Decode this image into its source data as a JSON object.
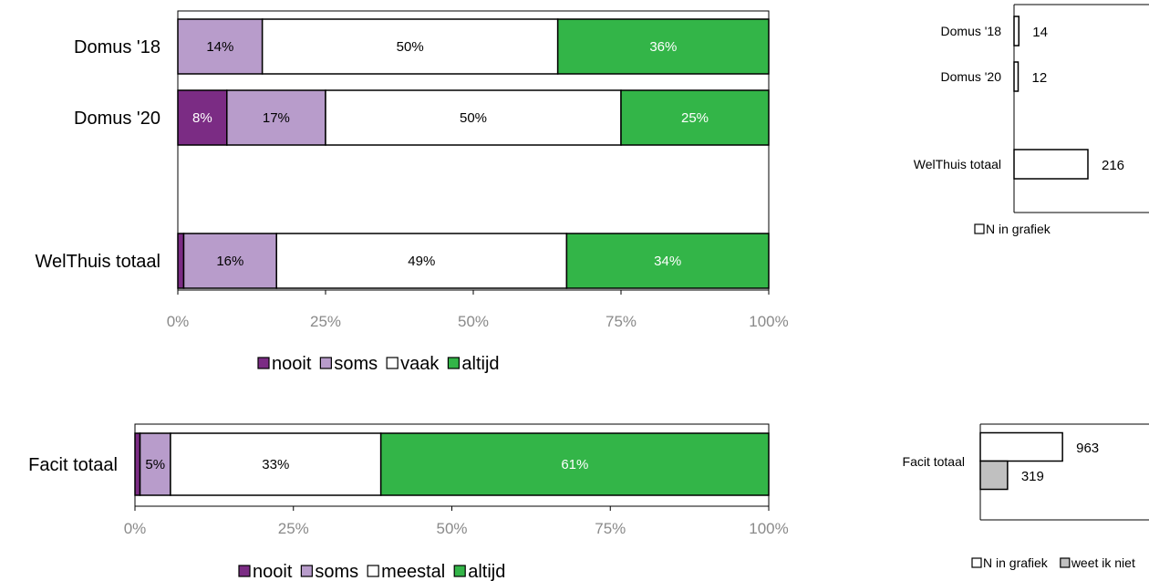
{
  "chart_data": [
    {
      "type": "bar",
      "stacked": true,
      "orientation": "horizontal",
      "categories": [
        "Domus '18",
        "Domus '20",
        "WelThuis totaal"
      ],
      "series": [
        {
          "name": "nooit",
          "color": "#7b2c84",
          "values": [
            0,
            8.3,
            1.0
          ],
          "labels": [
            "",
            "8%",
            ""
          ]
        },
        {
          "name": "soms",
          "color": "#b89ccb",
          "values": [
            14.3,
            16.7,
            15.7
          ],
          "labels": [
            "14%",
            "17%",
            "16%"
          ]
        },
        {
          "name": "vaak",
          "color": "#ffffff",
          "values": [
            50.0,
            50.0,
            49.1
          ],
          "labels": [
            "50%",
            "50%",
            "49%"
          ]
        },
        {
          "name": "altijd",
          "color": "#33b548",
          "values": [
            35.7,
            25.0,
            34.2
          ],
          "labels": [
            "36%",
            "25%",
            "34%"
          ]
        }
      ],
      "xlim": [
        0,
        100
      ],
      "xticks": [
        "0%",
        "25%",
        "50%",
        "75%",
        "100%"
      ],
      "legend_position": "bottom"
    },
    {
      "type": "bar",
      "stacked": true,
      "orientation": "horizontal",
      "categories": [
        "Facit totaal"
      ],
      "series": [
        {
          "name": "nooit",
          "color": "#7b2c84",
          "values": [
            0.8
          ],
          "labels": [
            ""
          ]
        },
        {
          "name": "soms",
          "color": "#b89ccb",
          "values": [
            4.8
          ],
          "labels": [
            "5%"
          ]
        },
        {
          "name": "meestal",
          "color": "#ffffff",
          "values": [
            33.2
          ],
          "labels": [
            "33%"
          ]
        },
        {
          "name": "altijd",
          "color": "#33b548",
          "values": [
            61.2
          ],
          "labels": [
            "61%"
          ]
        }
      ],
      "xlim": [
        0,
        100
      ],
      "xticks": [
        "0%",
        "25%",
        "50%",
        "75%",
        "100%"
      ],
      "legend_position": "bottom"
    },
    {
      "type": "bar",
      "orientation": "horizontal",
      "categories": [
        "Domus '18",
        "Domus '20",
        "WelThuis totaal"
      ],
      "series": [
        {
          "name": "N in grafiek",
          "color": "#ffffff",
          "values": [
            14,
            12,
            216
          ]
        }
      ],
      "legend_position": "bottom"
    },
    {
      "type": "bar",
      "orientation": "horizontal",
      "categories": [
        "Facit totaal"
      ],
      "series": [
        {
          "name": "N in grafiek",
          "color": "#ffffff",
          "values": [
            963
          ]
        },
        {
          "name": "weet ik niet",
          "color": "#c0c0c0",
          "values": [
            319
          ]
        }
      ],
      "legend_position": "bottom"
    }
  ]
}
